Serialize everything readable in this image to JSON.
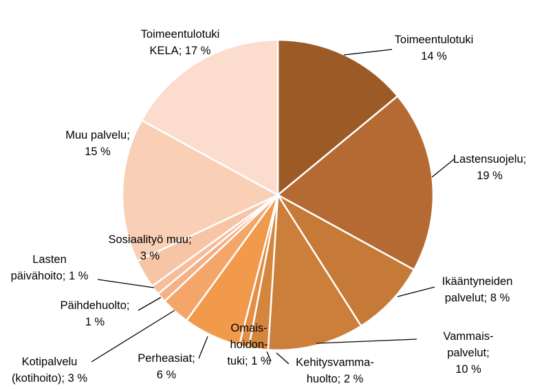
{
  "chart_data": {
    "type": "pie",
    "categories": [
      "Toimeentulotuki",
      "Lastensuojelu;",
      "Ikääntyneiden\npalvelut;",
      "Vammais-\npalvelut;",
      "Kehitysvamma-\nhuolto;",
      "Omais-\nhoidon-\ntuki;",
      "Perheasiat;",
      "Kotipalvelu\n(kotihoito);",
      "Päihdehuolto;",
      "Lasten\npäivähoito;",
      "Sosiaalityö muu;",
      "Muu palvelu;",
      "Toimeentulotuki\nKELA;"
    ],
    "values": [
      14,
      19,
      8,
      10,
      2,
      1,
      6,
      3,
      1,
      1,
      3,
      15,
      17
    ],
    "value_labels": [
      "14 %",
      "19 %",
      "8 %",
      "10 %",
      "2 %",
      "1 %",
      "6 %",
      "3 %",
      "1 %",
      "1 %",
      "3 %",
      "15 %",
      "17 %"
    ],
    "colors": [
      "#9c5a26",
      "#b46a32",
      "#c57a38",
      "#cc7f3a",
      "#d4863e",
      "#e08f45",
      "#f29a4c",
      "#f4a66a",
      "#f5b083",
      "#f7bd9a",
      "#f8c4a6",
      "#f9cfb6",
      "#fbdccd"
    ]
  }
}
